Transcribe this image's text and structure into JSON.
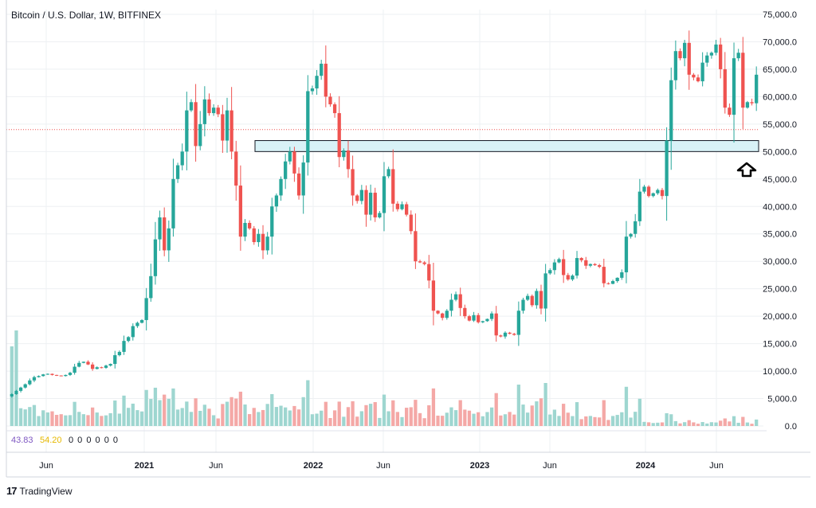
{
  "header": {
    "title": "Bitcoin / U.S. Dollar, 1W, BITFINEX"
  },
  "indicator": {
    "value1": "43.83",
    "value2": "54.20",
    "zeros": "0  0  0  0  0  0"
  },
  "footer": {
    "logo_text": "TradingView",
    "logo_mark": "17"
  },
  "colors": {
    "up": "#26a69a",
    "down": "#ef5350",
    "zone_fill": "#d8f2f7",
    "zone_border": "#131722",
    "price_line": "#ef5350",
    "grid": "#eef0f3",
    "indicator1": "#7e57c2",
    "indicator2": "#e6b800"
  },
  "chart_data": {
    "type": "candlestick",
    "title": "Bitcoin / U.S. Dollar, 1W, BITFINEX",
    "xlabel": "",
    "ylabel": "",
    "ylim": [
      0,
      75000
    ],
    "y_ticks": [
      "75,000.0",
      "70,000.0",
      "65,000.0",
      "60,000.0",
      "55,000.0",
      "50,000.0",
      "45,000.0",
      "40,000.0",
      "35,000.0",
      "30,000.0",
      "25,000.0",
      "20,000.0",
      "15,000.0",
      "10,000.0",
      "5,000.0",
      "0.0"
    ],
    "x_ticks": [
      "Jun",
      "2021",
      "Jun",
      "2022",
      "Jun",
      "2023",
      "Jun",
      "2024",
      "Jun"
    ],
    "x_tick_bold": [
      false,
      true,
      false,
      true,
      false,
      true,
      false,
      true,
      false
    ],
    "grid": true,
    "current_price": 54000,
    "support_zone": [
      50000,
      52000
    ],
    "annotation": "up-arrow at support zone",
    "weekly_closes": [
      5800,
      6400,
      7000,
      7600,
      8300,
      8900,
      9100,
      9400,
      9500,
      9300,
      9200,
      9100,
      9300,
      9700,
      10800,
      11500,
      11700,
      11200,
      10400,
      10700,
      10600,
      11000,
      11300,
      12900,
      13500,
      15500,
      16200,
      18200,
      18800,
      19300,
      23300,
      27300,
      34000,
      38000,
      32000,
      36000,
      45000,
      47500,
      50000,
      57500,
      59000,
      51000,
      55000,
      59500,
      57000,
      58000,
      56800,
      52000,
      57500,
      50000,
      43800,
      34500,
      37000,
      36000,
      33500,
      35000,
      32000,
      34500,
      40000,
      42000,
      45000,
      48200,
      50000,
      46000,
      42000,
      48000,
      61000,
      61500,
      63800,
      66000,
      60000,
      58600,
      57000,
      49000,
      50200,
      46800,
      42000,
      41000,
      43000,
      38500,
      42500,
      38000,
      38800,
      45500,
      46800,
      40500,
      39500,
      40400,
      38500,
      35500,
      30000,
      29800,
      29500,
      26500,
      21000,
      20500,
      19700,
      21000,
      23000,
      24000,
      21500,
      20000,
      19200,
      20200,
      18900,
      19100,
      19500,
      20500,
      16500,
      16300,
      17000,
      16800,
      16600,
      21000,
      23000,
      23700,
      22000,
      24600,
      21400,
      27800,
      28400,
      29800,
      30400,
      27500,
      26700,
      27400,
      30600,
      30200,
      29200,
      29500,
      29300,
      29000,
      26000,
      25900,
      26400,
      27000,
      28000,
      34500,
      35000,
      37300,
      42700,
      43600,
      41900,
      42400,
      43000,
      41900,
      52000,
      63000,
      68300,
      67000,
      69800,
      64000,
      63500,
      62800,
      66200,
      67500,
      68000,
      69500,
      65000,
      58000,
      56700,
      67000,
      68000,
      58000,
      59000,
      58800,
      64000
    ],
    "volume_note": "weekly volume bars below price, scale 0 to 5,000.0+"
  }
}
